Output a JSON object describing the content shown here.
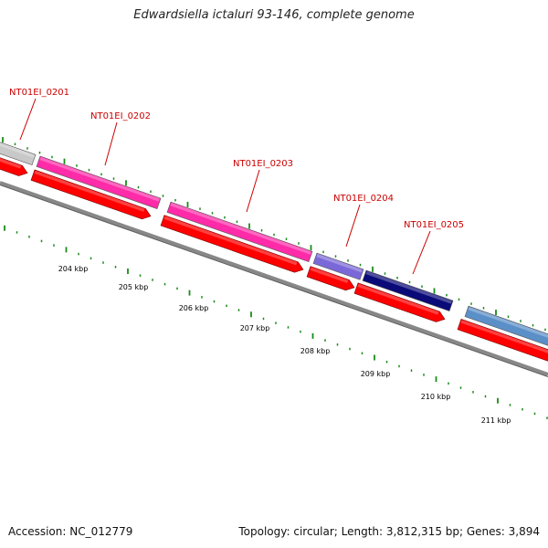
{
  "header": {
    "title": "Edwardsiella ictaluri 93-146, complete genome"
  },
  "footer": {
    "accession": "Accession: NC_012779",
    "summary": "Topology: circular; Length: 3,812,315 bp; Genes: 3,894"
  },
  "colors": {
    "backbone": "#888888",
    "cds": "#ff0000",
    "magenta": "#ff2ba8",
    "grey": "#c8c8c8",
    "purple": "#7b68d8",
    "navy": "#0a0a78",
    "steel": "#5b8fc8",
    "dotted": "#1a8a1a",
    "label": "#cc0000"
  },
  "diagram_data": {
    "type": "genome-map-zoom",
    "axis_unit": "kbp",
    "tick_labels": [
      "204 kbp",
      "205 kbp",
      "206 kbp",
      "207 kbp",
      "208 kbp",
      "209 kbp",
      "210 kbp",
      "211 kbp"
    ],
    "genes": [
      {
        "label": "NT01EI_0201"
      },
      {
        "label": "NT01EI_0202"
      },
      {
        "label": "NT01EI_0203"
      },
      {
        "label": "NT01EI_0204"
      },
      {
        "label": "NT01EI_0205"
      }
    ]
  }
}
